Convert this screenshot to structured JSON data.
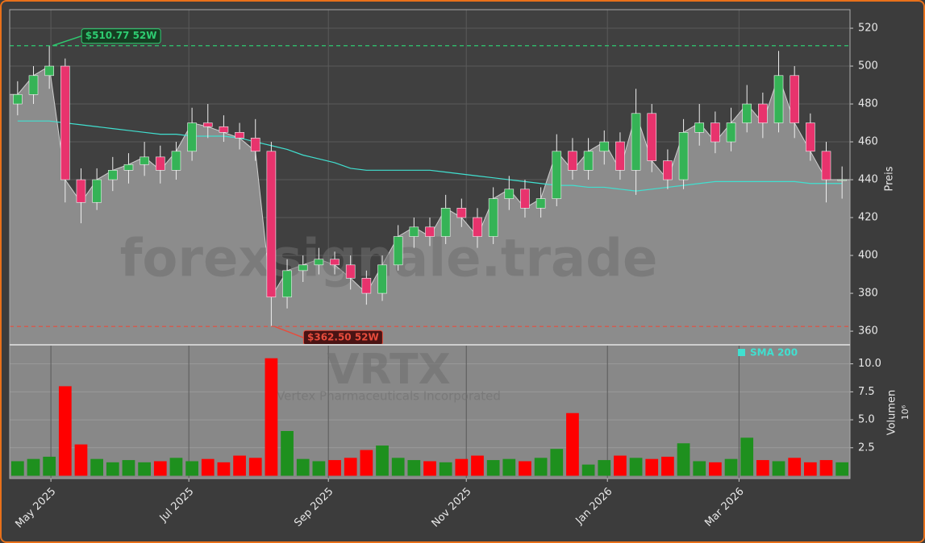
{
  "chart_data": {
    "type": "candlestick",
    "ticker": "VRTX",
    "company": "Vertex Pharmaceuticals Incorporated",
    "watermark": "forexsignale.trade",
    "y_label": "Preis",
    "volume_label": "Volumen",
    "volume_multiplier": "10⁶",
    "categories": [
      null,
      null,
      null,
      null,
      null,
      null,
      null,
      null,
      null,
      null,
      null,
      null,
      null,
      null,
      null,
      null,
      null,
      null,
      null,
      null,
      null,
      null,
      null,
      null,
      null,
      null,
      null,
      null,
      null,
      null,
      null,
      null,
      null,
      null,
      null,
      null,
      null,
      null,
      null,
      null,
      null,
      null,
      null,
      null,
      null,
      null,
      null,
      null,
      null,
      null,
      null,
      null,
      null
    ],
    "open": [
      480,
      485,
      495,
      500,
      440,
      428,
      440,
      445,
      448,
      452,
      445,
      455,
      470,
      468,
      465,
      462,
      455,
      378,
      392,
      395,
      398,
      395,
      388,
      380,
      395,
      410,
      415,
      410,
      425,
      420,
      410,
      430,
      435,
      425,
      430,
      455,
      445,
      455,
      460,
      445,
      475,
      450,
      440,
      465,
      470,
      460,
      470,
      480,
      470,
      495,
      470,
      455,
      440
    ],
    "high": [
      492,
      500,
      510.77,
      504,
      446,
      446,
      452,
      454,
      460,
      458,
      460,
      478,
      480,
      474,
      470,
      472,
      460,
      398,
      400,
      404,
      402,
      400,
      392,
      400,
      416,
      420,
      420,
      432,
      430,
      425,
      436,
      442,
      440,
      436,
      464,
      462,
      462,
      466,
      465,
      488,
      480,
      456,
      472,
      480,
      476,
      478,
      490,
      486,
      508,
      500,
      475,
      460,
      447
    ],
    "low": [
      474,
      480,
      488,
      428,
      417,
      424,
      434,
      438,
      442,
      438,
      440,
      450,
      462,
      460,
      456,
      450,
      362.5,
      372,
      386,
      390,
      390,
      382,
      374,
      376,
      392,
      404,
      405,
      406,
      415,
      404,
      406,
      424,
      420,
      420,
      426,
      440,
      440,
      448,
      440,
      432,
      444,
      435,
      435,
      458,
      454,
      455,
      465,
      462,
      465,
      462,
      450,
      428,
      430
    ],
    "close": [
      485,
      495,
      500,
      440,
      428,
      440,
      445,
      448,
      452,
      445,
      455,
      470,
      468,
      465,
      462,
      455,
      378,
      392,
      395,
      398,
      395,
      388,
      380,
      395,
      410,
      415,
      410,
      425,
      420,
      410,
      430,
      435,
      425,
      430,
      455,
      445,
      455,
      460,
      445,
      475,
      450,
      440,
      465,
      470,
      460,
      470,
      480,
      470,
      495,
      470,
      455,
      440,
      440
    ],
    "volume": [
      1.3,
      1.5,
      1.7,
      8.0,
      2.8,
      1.5,
      1.2,
      1.4,
      1.2,
      1.3,
      1.6,
      1.3,
      1.5,
      1.2,
      1.8,
      1.6,
      10.5,
      4.0,
      1.5,
      1.3,
      1.4,
      1.6,
      2.3,
      2.7,
      1.6,
      1.4,
      1.3,
      1.2,
      1.5,
      1.8,
      1.4,
      1.5,
      1.3,
      1.6,
      2.4,
      5.6,
      1.0,
      1.4,
      1.8,
      1.6,
      1.5,
      1.7,
      2.9,
      1.3,
      1.2,
      1.5,
      3.4,
      1.4,
      1.3,
      1.6,
      1.2,
      1.4,
      1.2
    ],
    "sma": {
      "name": "SMA 200",
      "color": "#40e0d0",
      "values": [
        471,
        471,
        471,
        470,
        469,
        468,
        467,
        466,
        465,
        464,
        464,
        463,
        463,
        463,
        462,
        460,
        458,
        456,
        453,
        451,
        449,
        446,
        445,
        445,
        445,
        445,
        445,
        444,
        443,
        442,
        441,
        440,
        439,
        438,
        437,
        437,
        436,
        436,
        435,
        434,
        435,
        436,
        437,
        438,
        439,
        439,
        439,
        439,
        439,
        439,
        438,
        438,
        438
      ]
    },
    "up_color": "#35b356",
    "down_color": "#e8336d",
    "volume_up_color": "#1e901e",
    "volume_down_color": "#ff0000",
    "area_color": "#8c8c8c",
    "ylim": [
      352.8,
      529.8
    ],
    "yticks": [
      360,
      380,
      400,
      420,
      440,
      460,
      480,
      500,
      520
    ],
    "volume_lim": [
      -0.25,
      11.7
    ],
    "volume_ticks": [
      2.5,
      {
        "value": 5,
        "label": "5.0"
      },
      7.5,
      {
        "value": 10,
        "label": "10.0"
      }
    ],
    "xticks": [
      {
        "value": 2.1,
        "label": "May 2025"
      },
      {
        "value": 10.8,
        "label": "Jul 2025"
      },
      {
        "value": 19.6,
        "label": "Sep 2025"
      },
      {
        "value": 28.3,
        "label": "Nov 2025"
      },
      {
        "value": 37.2,
        "label": "Jan 2026"
      },
      {
        "value": 45.5,
        "label": "Mar 2026"
      }
    ],
    "grid": true,
    "high_line": {
      "value": 510.77,
      "label": "$510.77 52W",
      "color": "#2ecc71"
    },
    "low_line": {
      "value": 362.5,
      "label": "$362.50 52W",
      "color": "#e74c3c"
    }
  }
}
